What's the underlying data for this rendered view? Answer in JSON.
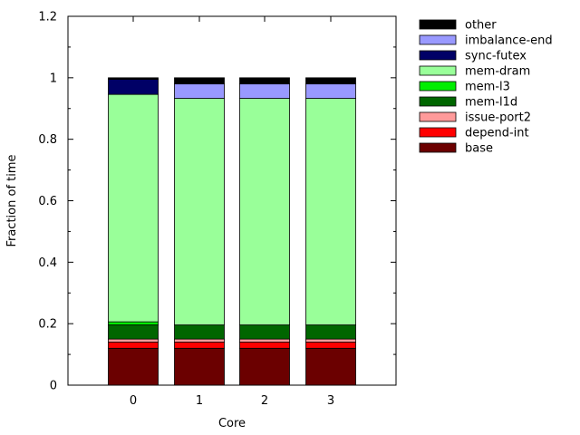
{
  "chart_data": {
    "type": "bar",
    "stacked": true,
    "xlabel": "Core",
    "ylabel": "Fraction of time",
    "ylim": [
      0,
      1.2
    ],
    "yticks": [
      0,
      0.2,
      0.4,
      0.6,
      0.8,
      1,
      1.2
    ],
    "ytick_labels": [
      "0",
      "0.2",
      "0.4",
      "0.6",
      "0.8",
      "1",
      "1.2"
    ],
    "categories": [
      "0",
      "1",
      "2",
      "3"
    ],
    "legend_position": "top-right, outside plot",
    "series": [
      {
        "name": "base",
        "color": "#6b0000",
        "values": [
          0.12,
          0.12,
          0.12,
          0.12
        ]
      },
      {
        "name": "depend-int",
        "color": "#ff0000",
        "values": [
          0.02,
          0.02,
          0.02,
          0.02
        ]
      },
      {
        "name": "issue-port2",
        "color": "#ff9a9a",
        "values": [
          0.01,
          0.01,
          0.01,
          0.01
        ]
      },
      {
        "name": "mem-l1d",
        "color": "#006600",
        "values": [
          0.046,
          0.046,
          0.046,
          0.046
        ]
      },
      {
        "name": "mem-l3",
        "color": "#00ee00",
        "values": [
          0.01,
          0.0,
          0.0,
          0.0
        ]
      },
      {
        "name": "mem-dram",
        "color": "#99ff99",
        "values": [
          0.74,
          0.737,
          0.737,
          0.737
        ]
      },
      {
        "name": "sync-futex",
        "color": "#000066",
        "values": [
          0.049,
          0.0,
          0.0,
          0.0
        ]
      },
      {
        "name": "imbalance-end",
        "color": "#9999ff",
        "values": [
          0.0,
          0.047,
          0.047,
          0.047
        ]
      },
      {
        "name": "other",
        "color": "#000000",
        "values": [
          0.005,
          0.02,
          0.02,
          0.02
        ]
      }
    ]
  }
}
